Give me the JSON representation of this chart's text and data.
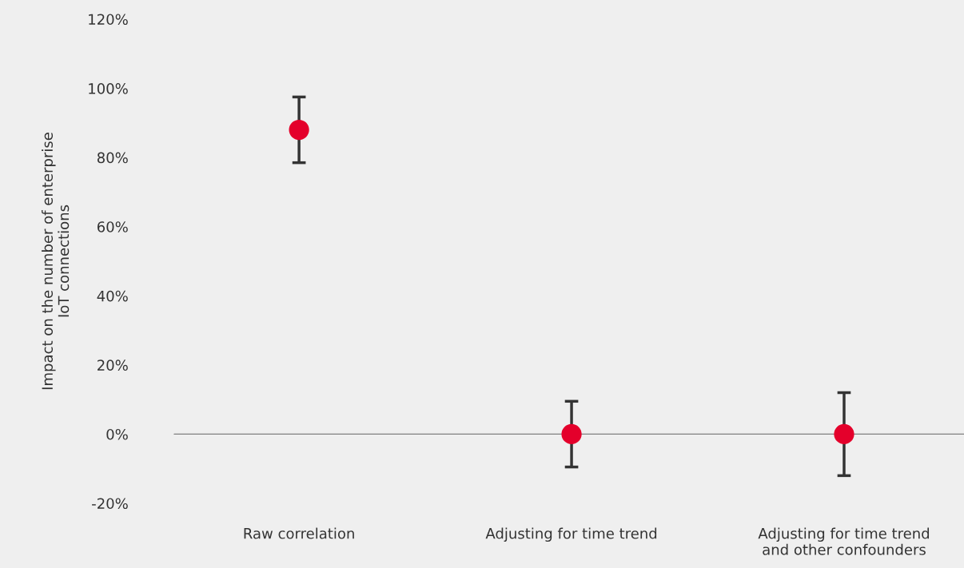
{
  "chart_data": {
    "type": "scatter",
    "ylabel": "Impact on the number of enterprise\nIoT connections",
    "categories": [
      "Raw correlation",
      "Adjusting for time trend",
      "Adjusting for time trend\nand other confounders"
    ],
    "series": [
      {
        "color": "#e4002b",
        "values": [
          88,
          0,
          0
        ],
        "errors": [
          9.5,
          9.5,
          12
        ]
      }
    ],
    "ylim": [
      -20,
      120
    ],
    "yticks": [
      {
        "value": -20,
        "label": "-20%"
      },
      {
        "value": 0,
        "label": "0%"
      },
      {
        "value": 20,
        "label": "20%"
      },
      {
        "value": 40,
        "label": "40%"
      },
      {
        "value": 60,
        "label": "60%"
      },
      {
        "value": 80,
        "label": "80%"
      },
      {
        "value": 100,
        "label": "100%"
      },
      {
        "value": 120,
        "label": "120%"
      }
    ],
    "ref_lines": [
      {
        "axis": "y",
        "value": 0,
        "color": "#7f7f7f"
      }
    ],
    "marker": "circle",
    "grid": false,
    "legend": false
  }
}
